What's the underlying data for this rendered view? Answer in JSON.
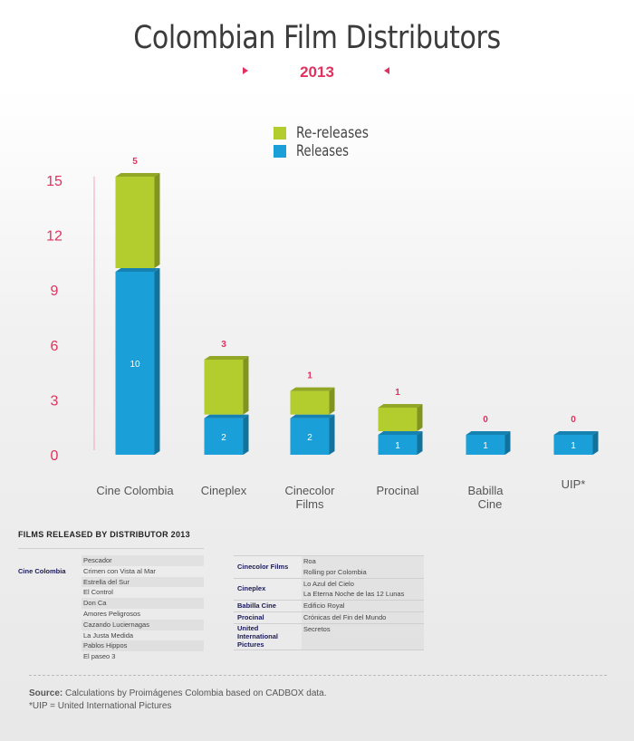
{
  "title": "Colombian Film Distributors",
  "year": "2013",
  "chart_data": {
    "type": "bar",
    "stacked": true,
    "categories": [
      "Cine Colombia",
      "Cineplex",
      "Cinecolor Films",
      "Procinal",
      "Babilla Cine",
      "UIP*"
    ],
    "series": [
      {
        "name": "Releases",
        "values": [
          10,
          2,
          2,
          1,
          1,
          1
        ],
        "color": "#1b9fd8"
      },
      {
        "name": "Re-releases",
        "values": [
          5,
          3,
          1,
          1,
          0,
          0
        ],
        "color": "#b3cc2e"
      }
    ],
    "yticks": [
      "15",
      "12",
      "9",
      "6",
      "3",
      "0"
    ],
    "ylim": [
      0,
      15
    ],
    "legend_position": "top-center",
    "colors": {
      "releases": "#1b9fd8",
      "rereleases": "#b3cc2e",
      "accent": "#e0315f"
    }
  },
  "table": {
    "title": "FILMS RELEASED BY DISTRIBUTOR  2013",
    "left": {
      "distributor": "Cine Colombia",
      "films": [
        "Pescador",
        "Crimen con Vista al Mar",
        "Estrella del Sur",
        "El Control",
        "Don Ca",
        "Amores Peligrosos",
        "Cazando Luciernagas",
        "La Justa Medida",
        "Pablos Hippos",
        "El paseo 3"
      ]
    },
    "right": [
      {
        "distributor": "Cinecolor Films",
        "films": [
          "Roa",
          "Rolling por Colombia"
        ]
      },
      {
        "distributor": "Cineplex",
        "films": [
          "Lo Azul del Cielo",
          "La Eterna Noche de las 12 Lunas"
        ]
      },
      {
        "distributor": "Babilla Cine",
        "films": [
          "Edificio Royal"
        ]
      },
      {
        "distributor": "Procinal",
        "films": [
          "Crónicas del Fin del Mundo"
        ]
      },
      {
        "distributor": "United International Pictures",
        "films": [
          "Secretos"
        ]
      }
    ]
  },
  "source_label": "Source:",
  "source_text": " Calculations by Proimágenes Colombia based on CADBOX data.",
  "footnote": "*UIP = United International Pictures"
}
